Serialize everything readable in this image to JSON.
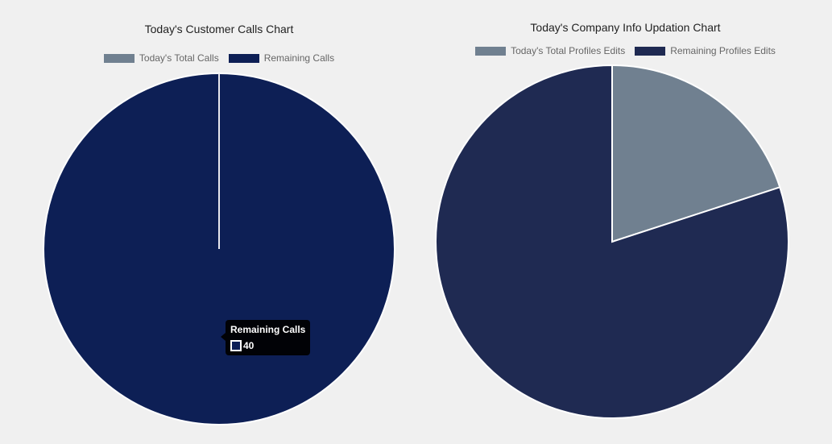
{
  "chart_data": [
    {
      "type": "pie",
      "title": "Today's Customer Calls Chart",
      "categories": [
        "Today's Total Calls",
        "Remaining Calls"
      ],
      "values": [
        0,
        40
      ],
      "colors": [
        "#708090",
        "#0d1f55"
      ],
      "legend_position": "top",
      "tooltip": {
        "title": "Remaining Calls",
        "value": "40"
      }
    },
    {
      "type": "pie",
      "title": "Today's Company Info Updation Chart",
      "categories": [
        "Today's Total Profiles Edits",
        "Remaining Profiles Edits"
      ],
      "values": [
        20,
        80
      ],
      "colors": [
        "#708090",
        "#1f2a52"
      ],
      "legend_position": "top"
    }
  ]
}
